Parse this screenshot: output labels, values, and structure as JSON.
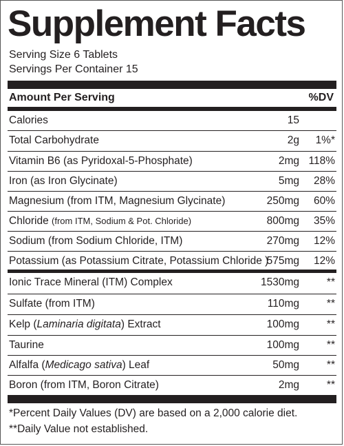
{
  "title": "Supplement Facts",
  "serving_size": "Serving Size 6 Tablets",
  "servings_per_container": "Servings Per Container 15",
  "header": {
    "amount": "Amount Per Serving",
    "dv": "%DV"
  },
  "rows_group1": [
    {
      "name": "Calories",
      "sub": "",
      "amount": "15",
      "dv": ""
    },
    {
      "name": "Total Carbohydrate",
      "sub": "",
      "amount": "2g",
      "dv": "1%*"
    },
    {
      "name": "Vitamin B6 (as Pyridoxal-5-Phosphate)",
      "sub": "",
      "amount": "2mg",
      "dv": "118%"
    },
    {
      "name": "Iron (as Iron Glycinate)",
      "sub": "",
      "amount": "5mg",
      "dv": "28%"
    },
    {
      "name": "Magnesium (from ITM, Magnesium Glycinate)",
      "sub": "",
      "amount": "250mg",
      "dv": "60%"
    },
    {
      "name": "Chloride ",
      "sub": "(from ITM, Sodium & Pot. Chloride)",
      "amount": "800mg",
      "dv": "35%"
    },
    {
      "name": "Sodium (from Sodium Chloride, ITM)",
      "sub": "",
      "amount": "270mg",
      "dv": "12%"
    },
    {
      "name": "Potassium (as Potassium Citrate, Potassium Chloride )",
      "sub": "",
      "amount": "575mg",
      "dv": "12%"
    }
  ],
  "rows_group2": [
    {
      "name": "Ionic Trace Mineral (ITM) Complex",
      "amount": "1530mg",
      "dv": "**"
    },
    {
      "name": "Sulfate (from ITM)",
      "amount": "110mg",
      "dv": "**"
    },
    {
      "name_pre": "Kelp (",
      "name_italic": "Laminaria digitata",
      "name_post": ") Extract",
      "amount": "100mg",
      "dv": "**"
    },
    {
      "name": "Taurine",
      "amount": "100mg",
      "dv": "**"
    },
    {
      "name_pre": "Alfalfa (",
      "name_italic": "Medicago sativa",
      "name_post": ") Leaf",
      "amount": "50mg",
      "dv": "**"
    },
    {
      "name": "Boron (from ITM, Boron Citrate)",
      "amount": "2mg",
      "dv": "**"
    }
  ],
  "footnotes": [
    "*Percent Daily Values (DV) are based on a 2,000 calorie diet.",
    "**Daily Value not established."
  ]
}
